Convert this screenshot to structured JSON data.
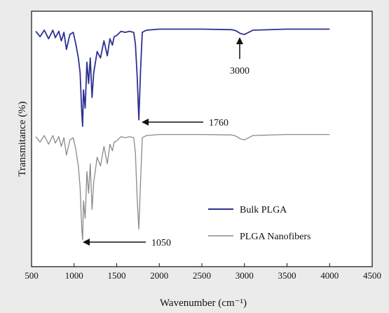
{
  "chart_data": {
    "type": "line",
    "xlabel": "Wavenumber (cm⁻¹)",
    "ylabel": "Transmitance (%)",
    "xlim": [
      500,
      4500
    ],
    "xticks": [
      500,
      1000,
      1500,
      2000,
      2500,
      3000,
      3500,
      4000,
      4500
    ],
    "y_ticks_shown": false,
    "legend_position": "bottom-right",
    "series": [
      {
        "name": "Bulk PLGA",
        "color": "#2e3192",
        "style": "solid",
        "x": [
          550,
          600,
          650,
          700,
          750,
          780,
          820,
          850,
          880,
          910,
          950,
          990,
          1020,
          1050,
          1070,
          1090,
          1100,
          1110,
          1130,
          1150,
          1170,
          1190,
          1210,
          1230,
          1270,
          1310,
          1350,
          1390,
          1420,
          1450,
          1470,
          1500,
          1550,
          1600,
          1650,
          1700,
          1720,
          1740,
          1760,
          1780,
          1800,
          1850,
          2000,
          2500,
          2850,
          2900,
          2950,
          3000,
          3050,
          3100,
          3500,
          3800,
          4000
        ],
        "y": [
          97,
          92,
          98,
          90,
          98,
          91,
          97,
          88,
          96,
          80,
          94,
          96,
          85,
          72,
          58,
          20,
          8,
          42,
          25,
          68,
          48,
          72,
          35,
          58,
          78,
          72,
          88,
          74,
          90,
          84,
          92,
          93,
          97,
          96,
          97,
          96,
          85,
          55,
          14,
          60,
          96,
          98,
          99,
          99,
          98.5,
          97.5,
          95,
          94,
          96,
          98,
          99,
          99,
          99
        ]
      },
      {
        "name": "PLGA Nanofibers",
        "color": "#8a8a8a",
        "style": "solid",
        "x": [
          550,
          600,
          650,
          700,
          750,
          780,
          820,
          850,
          880,
          910,
          950,
          990,
          1020,
          1050,
          1070,
          1090,
          1100,
          1110,
          1130,
          1150,
          1170,
          1190,
          1210,
          1230,
          1270,
          1310,
          1350,
          1390,
          1420,
          1450,
          1470,
          1500,
          1550,
          1600,
          1650,
          1700,
          1720,
          1740,
          1760,
          1780,
          1800,
          1850,
          2000,
          2500,
          2850,
          2900,
          2950,
          3000,
          3050,
          3100,
          3500,
          3800,
          4000
        ],
        "y": [
          97,
          92,
          98,
          90,
          98,
          91,
          97,
          88,
          96,
          80,
          94,
          96,
          85,
          70,
          50,
          12,
          2,
          38,
          22,
          65,
          45,
          72,
          30,
          55,
          78,
          70,
          88,
          72,
          90,
          84,
          92,
          93,
          97,
          96,
          97,
          96,
          82,
          40,
          12,
          55,
          96,
          98,
          99,
          99,
          98.5,
          97.5,
          95,
          94,
          96,
          98,
          99,
          99,
          99
        ]
      }
    ],
    "annotations": [
      {
        "text": "3000",
        "x": 3000
      },
      {
        "text": "1760",
        "x": 1760
      },
      {
        "text": "1050",
        "x": 1050
      }
    ]
  }
}
